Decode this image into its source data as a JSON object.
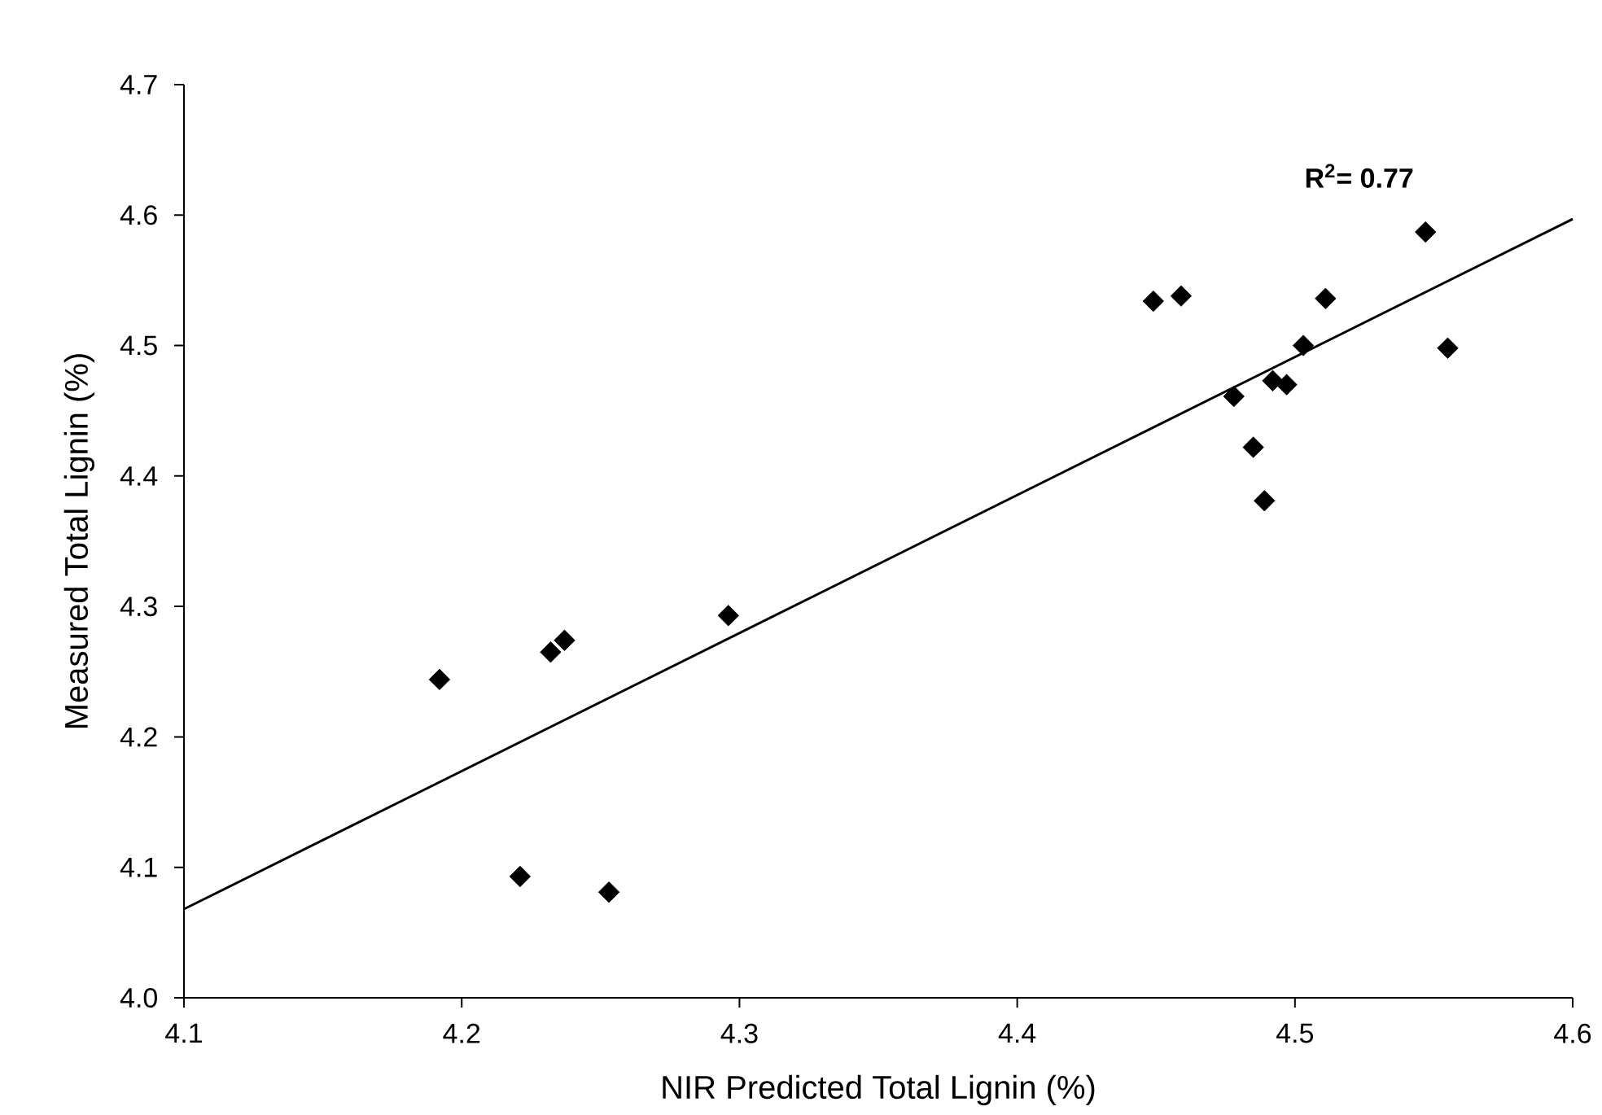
{
  "chart_data": {
    "type": "scatter",
    "xlabel": "NIR Predicted Total Lignin (%)",
    "ylabel": "Measured Total Lignin (%)",
    "xlim": [
      4.1,
      4.6
    ],
    "xticks": [
      4.1,
      4.2,
      4.3,
      4.4,
      4.5,
      4.6
    ],
    "ylim": [
      4.0,
      4.7
    ],
    "yticks": [
      {
        "value": 4,
        "label": "4.0"
      },
      4.1,
      4.2,
      4.3,
      4.4,
      4.5,
      4.6,
      4.7
    ],
    "grid": false,
    "marker": "diamond",
    "annotations": [
      "R$^{2}$= 0.77"
    ],
    "series": [
      {
        "color": "#000000",
        "x": [
          4.192,
          4.221,
          4.232,
          4.237,
          4.253,
          4.296,
          4.449,
          4.459,
          4.478,
          4.485,
          4.489,
          4.492,
          4.497,
          4.503,
          4.511,
          4.547,
          4.555
        ],
        "values": [
          4.244,
          4.093,
          4.265,
          4.274,
          4.081,
          4.293,
          4.534,
          4.538,
          4.461,
          4.422,
          4.381,
          4.473,
          4.47,
          4.5,
          4.536,
          4.587,
          4.498
        ]
      },
      {
        "type": "line",
        "color": "#000000",
        "marker": "none",
        "line_style": "solid",
        "x": [
          4.1,
          4.6
        ],
        "values": [
          4.068,
          4.597
        ]
      }
    ]
  }
}
